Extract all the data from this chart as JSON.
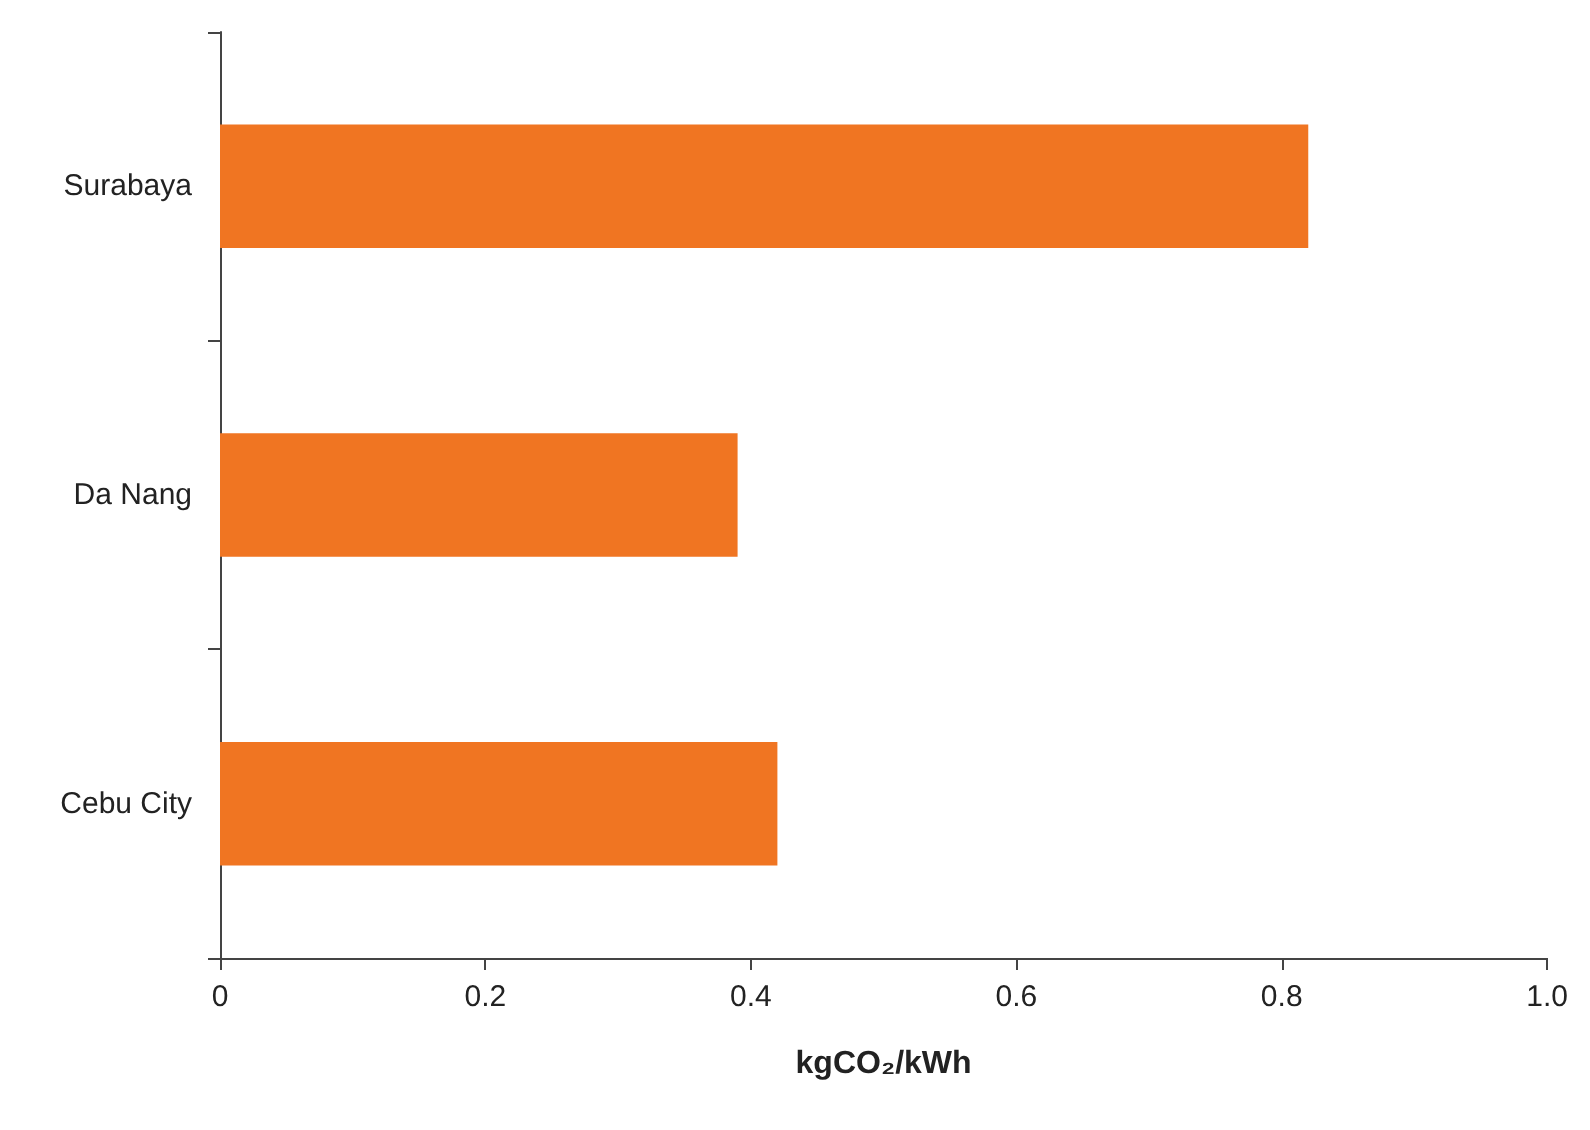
{
  "chart_data": {
    "type": "bar",
    "orientation": "horizontal",
    "categories": [
      "Surabaya",
      "Da Nang",
      "Cebu City"
    ],
    "values": [
      0.82,
      0.39,
      0.42
    ],
    "color": "#f07522",
    "xlim": [
      0,
      1
    ],
    "xticks": [
      0,
      0.2,
      0.4,
      0.6,
      0.8,
      {
        "value": 1,
        "label": "1.0"
      }
    ],
    "xlabel": "kgCO₂/kWh",
    "grid": false
  }
}
